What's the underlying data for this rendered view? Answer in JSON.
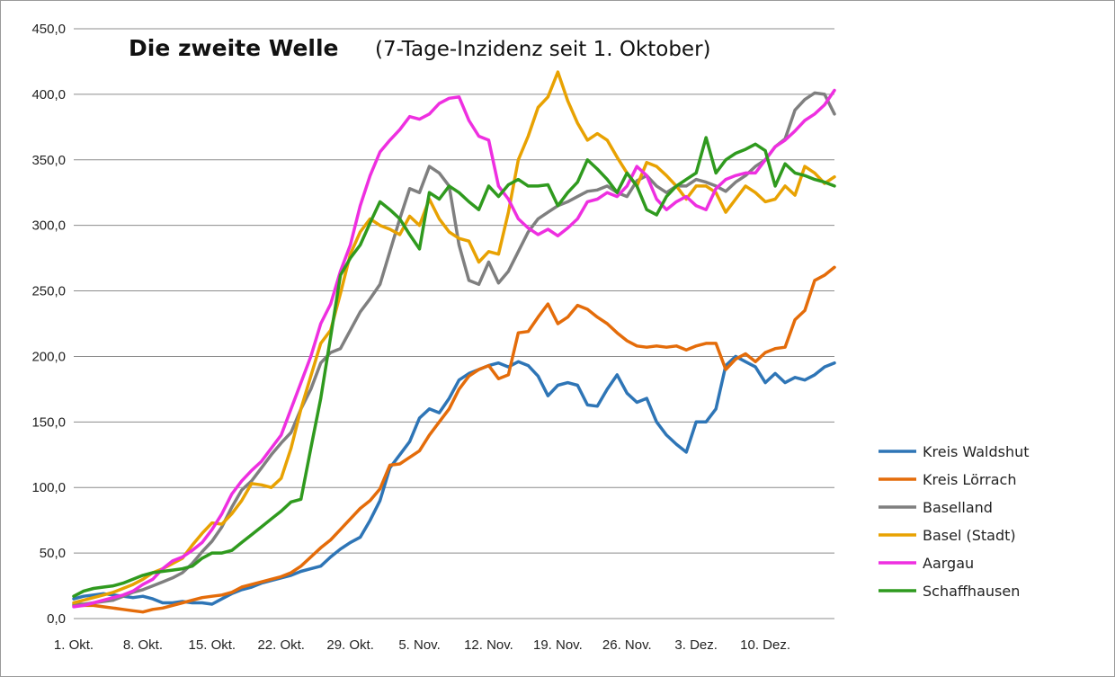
{
  "chart_data": {
    "type": "line",
    "title": "Die zweite Welle",
    "subtitle": "(7-Tage-Inzidenz seit 1. Oktober)",
    "xlabel": "",
    "ylabel": "",
    "ylim": [
      0,
      450
    ],
    "yticks": [
      "0,0",
      "50,0",
      "100,0",
      "150,0",
      "200,0",
      "250,0",
      "300,0",
      "350,0",
      "400,0",
      "450,0"
    ],
    "x_tick_labels": [
      "1. Okt.",
      "8. Okt.",
      "15. Okt.",
      "22. Okt.",
      "29. Okt.",
      "5. Nov.",
      "12. Nov.",
      "19. Nov.",
      "26. Nov.",
      "3. Dez.",
      "10. Dez."
    ],
    "x_tick_days": [
      0,
      7,
      14,
      21,
      28,
      35,
      42,
      49,
      56,
      63,
      70
    ],
    "x_range_days": [
      0,
      77
    ],
    "grid": true,
    "legend_position": "right",
    "series": [
      {
        "name": "Kreis Waldshut",
        "color": "#2E75B6",
        "values": [
          15,
          17,
          18,
          19,
          18,
          17,
          16,
          17,
          15,
          12,
          12,
          13,
          12,
          12,
          11,
          15,
          19,
          22,
          24,
          27,
          29,
          31,
          33,
          36,
          38,
          40,
          47,
          53,
          58,
          62,
          75,
          90,
          115,
          125,
          135,
          153,
          160,
          157,
          168,
          182,
          187,
          190,
          193,
          195,
          192,
          196,
          193,
          185,
          170,
          178,
          180,
          178,
          163,
          162,
          175,
          186,
          172,
          165,
          168,
          150,
          140,
          133,
          127,
          150,
          150,
          160,
          193,
          200,
          196,
          192,
          180,
          187,
          180,
          184,
          182,
          186,
          192,
          195
        ]
      },
      {
        "name": "Kreis Lörrach",
        "color": "#E46C0A",
        "values": [
          10,
          10,
          10,
          9,
          8,
          7,
          6,
          5,
          7,
          8,
          10,
          12,
          14,
          16,
          17,
          18,
          20,
          24,
          26,
          28,
          30,
          32,
          35,
          40,
          47,
          54,
          60,
          68,
          76,
          84,
          90,
          99,
          117,
          118,
          123,
          128,
          140,
          150,
          160,
          175,
          185,
          190,
          193,
          183,
          186,
          218,
          219,
          230,
          240,
          225,
          230,
          239,
          236,
          230,
          225,
          218,
          212,
          208,
          207,
          208,
          207,
          208,
          205,
          208,
          210,
          210,
          190,
          198,
          202,
          196,
          203,
          206,
          207,
          228,
          235,
          258,
          262,
          268
        ]
      },
      {
        "name": "Baselland",
        "color": "#7F7F7F",
        "values": [
          11,
          11,
          12,
          13,
          14,
          17,
          20,
          22,
          25,
          28,
          31,
          35,
          42,
          51,
          59,
          70,
          85,
          98,
          105,
          115,
          125,
          134,
          142,
          160,
          175,
          195,
          203,
          206,
          220,
          234,
          244,
          255,
          280,
          305,
          328,
          325,
          345,
          340,
          330,
          285,
          258,
          255,
          272,
          256,
          265,
          280,
          295,
          305,
          310,
          315,
          318,
          322,
          326,
          327,
          330,
          325,
          322,
          334,
          338,
          330,
          325,
          330,
          330,
          335,
          333,
          330,
          326,
          333,
          338,
          345,
          350,
          360,
          366,
          388,
          396,
          401,
          400,
          385
        ]
      },
      {
        "name": "Basel (Stadt)",
        "color": "#E8A202",
        "values": [
          12,
          14,
          16,
          18,
          20,
          23,
          26,
          30,
          35,
          38,
          42,
          46,
          56,
          65,
          73,
          72,
          80,
          90,
          103,
          102,
          100,
          107,
          130,
          160,
          185,
          210,
          220,
          248,
          278,
          295,
          305,
          300,
          297,
          293,
          307,
          300,
          320,
          305,
          295,
          290,
          288,
          272,
          280,
          278,
          310,
          350,
          368,
          390,
          398,
          417,
          395,
          378,
          365,
          370,
          365,
          352,
          340,
          330,
          348,
          345,
          338,
          330,
          320,
          330,
          330,
          325,
          310,
          320,
          330,
          325,
          318,
          320,
          330,
          323,
          345,
          340,
          332,
          337
        ]
      },
      {
        "name": "Aargau",
        "color": "#EE2FE0",
        "values": [
          9,
          10,
          12,
          14,
          16,
          18,
          21,
          26,
          30,
          38,
          44,
          47,
          52,
          58,
          68,
          80,
          95,
          105,
          113,
          120,
          130,
          140,
          160,
          180,
          200,
          225,
          240,
          265,
          285,
          315,
          338,
          356,
          365,
          373,
          383,
          381,
          385,
          393,
          397,
          398,
          380,
          368,
          365,
          330,
          320,
          305,
          298,
          293,
          297,
          292,
          298,
          305,
          318,
          320,
          325,
          322,
          330,
          345,
          338,
          320,
          312,
          318,
          322,
          315,
          312,
          328,
          335,
          338,
          340,
          340,
          350,
          360,
          365,
          372,
          380,
          385,
          392,
          403
        ]
      },
      {
        "name": "Schaffhausen",
        "color": "#2F9A1E",
        "values": [
          17,
          21,
          23,
          24,
          25,
          27,
          30,
          33,
          35,
          36,
          37,
          38,
          40,
          46,
          50,
          50,
          52,
          58,
          64,
          70,
          76,
          82,
          89,
          91,
          130,
          168,
          215,
          262,
          275,
          285,
          302,
          318,
          312,
          305,
          293,
          282,
          325,
          320,
          330,
          325,
          318,
          312,
          330,
          322,
          331,
          335,
          330,
          330,
          331,
          315,
          325,
          333,
          350,
          343,
          335,
          325,
          340,
          330,
          312,
          308,
          322,
          330,
          335,
          340,
          367,
          340,
          350,
          355,
          358,
          362,
          357,
          330,
          347,
          340,
          338,
          335,
          333,
          330
        ]
      }
    ]
  }
}
